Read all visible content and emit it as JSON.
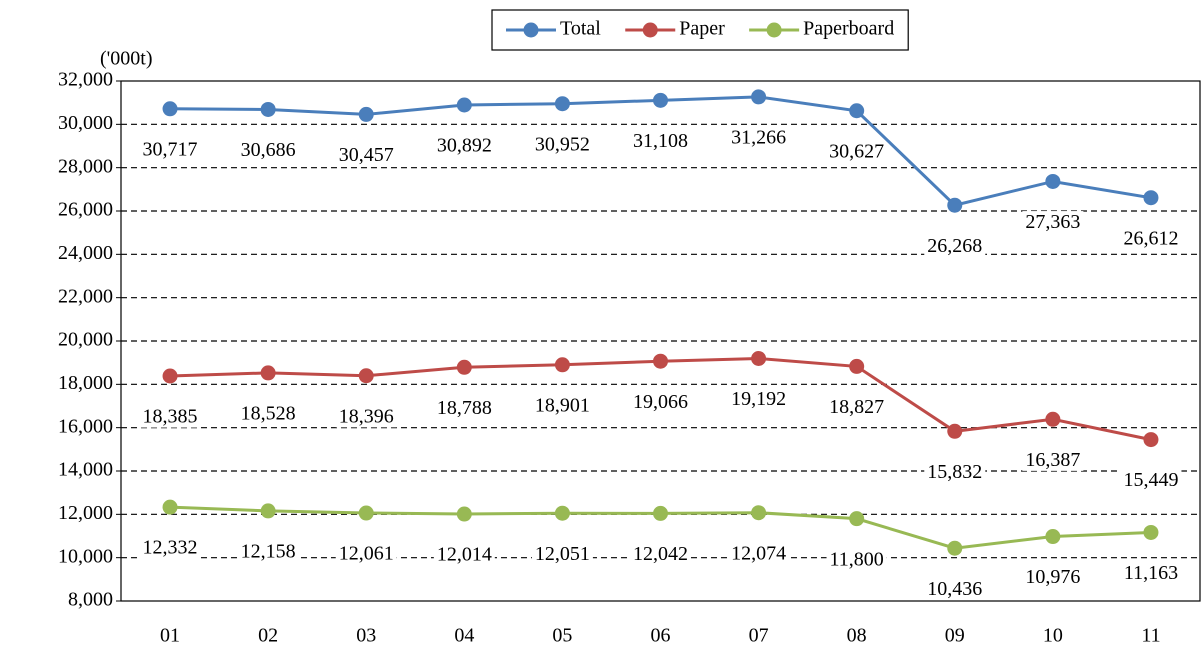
{
  "chart_data": {
    "type": "line",
    "y_label": "('000t)",
    "categories": [
      "01",
      "02",
      "03",
      "04",
      "05",
      "06",
      "07",
      "08",
      "09",
      "10",
      "11"
    ],
    "series": [
      {
        "name": "Total",
        "color": "#4a7ebb",
        "values": [
          30717,
          30686,
          30457,
          30892,
          30952,
          31108,
          31266,
          30627,
          26268,
          27363,
          26612
        ],
        "value_labels": [
          "30,717",
          "30,686",
          "30,457",
          "30,892",
          "30,952",
          "31,108",
          "31,266",
          "30,627",
          "26,268",
          "27,363",
          "26,612"
        ]
      },
      {
        "name": "Paper",
        "color": "#be4b48",
        "values": [
          18385,
          18528,
          18396,
          18788,
          18901,
          19066,
          19192,
          18827,
          15832,
          16387,
          15449
        ],
        "value_labels": [
          "18,385",
          "18,528",
          "18,396",
          "18,788",
          "18,901",
          "19,066",
          "19,192",
          "18,827",
          "15,832",
          "16,387",
          "15,449"
        ]
      },
      {
        "name": "Paperboard",
        "color": "#98b954",
        "values": [
          12332,
          12158,
          12061,
          12014,
          12051,
          12042,
          12074,
          11800,
          10436,
          10976,
          11163
        ],
        "value_labels": [
          "12,332",
          "12,158",
          "12,061",
          "12,014",
          "12,051",
          "12,042",
          "12,074",
          "11,800",
          "10,436",
          "10,976",
          "11,163"
        ]
      }
    ],
    "ylim": [
      8000,
      32000
    ],
    "yticks": [
      {
        "value": 8000,
        "label": "8,000"
      },
      {
        "value": 10000,
        "label": "10,000"
      },
      {
        "value": 12000,
        "label": "12,000"
      },
      {
        "value": 14000,
        "label": "14,000"
      },
      {
        "value": 16000,
        "label": "16,000"
      },
      {
        "value": 18000,
        "label": "18,000"
      },
      {
        "value": 20000,
        "label": "20,000"
      },
      {
        "value": 22000,
        "label": "22,000"
      },
      {
        "value": 24000,
        "label": "24,000"
      },
      {
        "value": 26000,
        "label": "26,000"
      },
      {
        "value": 28000,
        "label": "28,000"
      },
      {
        "value": 30000,
        "label": "30,000"
      },
      {
        "value": 32000,
        "label": "32,000"
      }
    ],
    "grid": true,
    "legend": "top"
  }
}
